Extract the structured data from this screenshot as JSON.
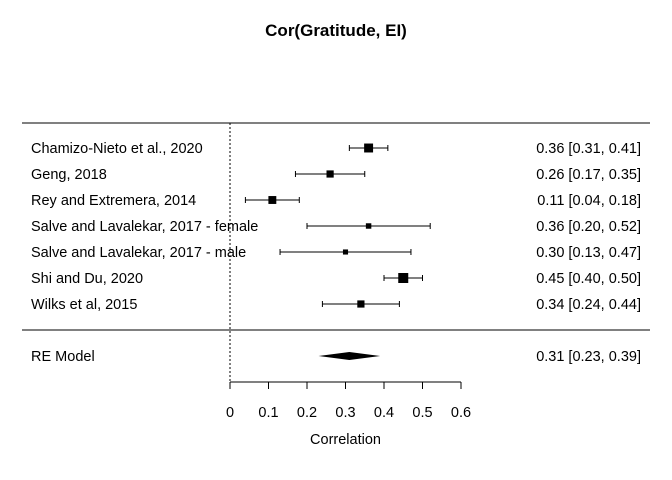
{
  "chart_data": {
    "type": "forest",
    "title": "Cor(Gratitude, EI)",
    "xlabel": "Correlation",
    "xlim": [
      0,
      0.6
    ],
    "xticks": [
      "0",
      "0.1",
      "0.2",
      "0.3",
      "0.4",
      "0.5",
      "0.6"
    ],
    "reference_line": 0,
    "studies": [
      {
        "label": "Chamizo-Nieto et al., 2020",
        "estimate": 0.36,
        "ci_low": 0.31,
        "ci_high": 0.41,
        "text": "0.36 [0.31, 0.41]",
        "weight": 0.85
      },
      {
        "label": "Geng, 2018",
        "estimate": 0.26,
        "ci_low": 0.17,
        "ci_high": 0.35,
        "text": "0.26 [0.17, 0.35]",
        "weight": 0.6
      },
      {
        "label": "Rey and Extremera, 2014",
        "estimate": 0.11,
        "ci_low": 0.04,
        "ci_high": 0.18,
        "text": "0.11 [0.04, 0.18]",
        "weight": 0.7
      },
      {
        "label": "Salve and Lavalekar, 2017 - female",
        "estimate": 0.36,
        "ci_low": 0.2,
        "ci_high": 0.52,
        "text": "0.36 [0.20, 0.52]",
        "weight": 0.35
      },
      {
        "label": "Salve and Lavalekar, 2017 - male",
        "estimate": 0.3,
        "ci_low": 0.13,
        "ci_high": 0.47,
        "text": "0.30 [0.13, 0.47]",
        "weight": 0.3
      },
      {
        "label": "Shi and Du, 2020",
        "estimate": 0.45,
        "ci_low": 0.4,
        "ci_high": 0.5,
        "text": "0.45 [0.40, 0.50]",
        "weight": 1.0
      },
      {
        "label": "Wilks et al, 2015",
        "estimate": 0.34,
        "ci_low": 0.24,
        "ci_high": 0.44,
        "text": "0.34 [0.24, 0.44]",
        "weight": 0.6
      }
    ],
    "summary": {
      "label": "RE Model",
      "estimate": 0.31,
      "ci_low": 0.23,
      "ci_high": 0.39,
      "text": "0.31 [0.23, 0.39]"
    }
  }
}
